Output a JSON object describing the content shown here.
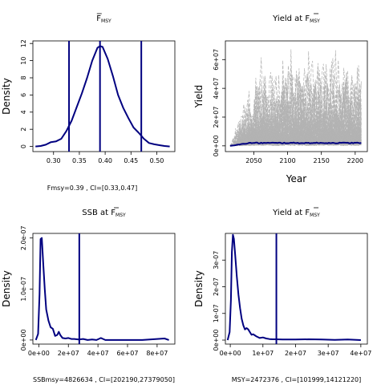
{
  "chart_data": [
    {
      "type": "line",
      "title_main": "F",
      "title_sub": "MSY",
      "title_bar": true,
      "xlabel": "",
      "ylabel": "Density",
      "xlim": [
        0.26,
        0.535
      ],
      "ylim": [
        -0.6,
        12.3
      ],
      "x_ticks": [
        0.3,
        0.35,
        0.4,
        0.45,
        0.5
      ],
      "x_tick_labels": [
        "0.30",
        "0.35",
        "0.40",
        "0.45",
        "0.50"
      ],
      "y_ticks": [
        0,
        2,
        4,
        6,
        8,
        10,
        12
      ],
      "y_tick_labels": [
        "0",
        "2",
        "4",
        "6",
        "8",
        "10",
        "12"
      ],
      "series": [
        {
          "color": "#000080",
          "x": [
            0.265,
            0.275,
            0.285,
            0.295,
            0.305,
            0.315,
            0.325,
            0.335,
            0.345,
            0.355,
            0.365,
            0.375,
            0.385,
            0.39,
            0.395,
            0.405,
            0.415,
            0.425,
            0.435,
            0.445,
            0.455,
            0.465,
            0.475,
            0.485,
            0.495,
            0.505,
            0.515,
            0.525
          ],
          "y": [
            0.0,
            0.05,
            0.2,
            0.5,
            0.6,
            0.9,
            1.8,
            3.0,
            4.6,
            6.2,
            8.0,
            10.0,
            11.5,
            11.7,
            11.6,
            10.2,
            8.2,
            6.0,
            4.5,
            3.3,
            2.2,
            1.6,
            0.9,
            0.4,
            0.25,
            0.15,
            0.05,
            0.0
          ]
        }
      ],
      "vlines": [
        0.33,
        0.39,
        0.47
      ],
      "caption": "Fmsy=0.39 , CI=[0.33,0.47]"
    },
    {
      "type": "line",
      "title_main": "Yield at ",
      "title_f": "F",
      "title_sub": "MSY",
      "title_bar": true,
      "xlabel": "Year",
      "ylabel": "Yield",
      "xlim": [
        2008,
        2218
      ],
      "ylim": [
        -4000000,
        73000000
      ],
      "x_ticks": [
        2050,
        2100,
        2150,
        2200
      ],
      "x_tick_labels": [
        "2050",
        "2100",
        "2150",
        "2200"
      ],
      "y_ticks": [
        0,
        20000000,
        40000000,
        60000000
      ],
      "y_tick_labels": [
        "0e+00",
        "2e+07",
        "4e+07",
        "6e+07"
      ],
      "year_range": [
        2015,
        2210
      ],
      "simulations": 120,
      "sim_color": "#b3b3b3",
      "median_color": "#000080",
      "median_level": 2000000
    },
    {
      "type": "line",
      "title_main": "SSB at ",
      "title_f": "F",
      "title_sub": "MSY",
      "title_bar": true,
      "xlabel": "",
      "ylabel": "Density",
      "xlim": [
        -4000000,
        92000000
      ],
      "ylim": [
        -8e-09,
        2.09e-07
      ],
      "x_ticks": [
        0,
        20000000,
        40000000,
        60000000,
        80000000
      ],
      "x_tick_labels": [
        "0e+00",
        "2e+07",
        "4e+07",
        "6e+07",
        "8e+07"
      ],
      "y_ticks": [
        0,
        1e-07,
        2e-07
      ],
      "y_tick_labels": [
        "0e+00",
        "1.0e-07",
        "2.0e-07"
      ],
      "series": [
        {
          "color": "#000080",
          "x": [
            -2000000,
            -500000,
            500000,
            1200000,
            2000000,
            3000000,
            4000000,
            5000000,
            6500000,
            8000000,
            9500000,
            11000000,
            12500000,
            13500000,
            14500000,
            16000000,
            18000000,
            20000000,
            22000000,
            24000000,
            27000000,
            30000000,
            33000000,
            36000000,
            39000000,
            42000000,
            45000000,
            50000000,
            60000000,
            70000000,
            80000000,
            85000000,
            88000000
          ],
          "y": [
            0.0,
            1.2e-08,
            9e-08,
            1.98e-07,
            2e-07,
            1.5e-07,
            1e-07,
            6e-08,
            3.8e-08,
            2.5e-08,
            2.2e-08,
            8e-09,
            1e-08,
            1.6e-08,
            1e-08,
            4e-09,
            3e-09,
            4e-09,
            2e-09,
            2e-09,
            1e-09,
            2e-09,
            0.0,
            1e-09,
            0.0,
            4e-09,
            0.0,
            0.0,
            0.0,
            0.0,
            2e-09,
            3e-09,
            0.0
          ]
        }
      ],
      "vlines": [
        27379050
      ],
      "caption": "SSBmsy=4826634 , CI=[202190,27379050]"
    },
    {
      "type": "line",
      "title_main": "Yield at ",
      "title_f": "F",
      "title_sub": "MSY",
      "title_bar": true,
      "xlabel": "",
      "ylabel": "Density",
      "xlim": [
        -1500000,
        42000000
      ],
      "ylim": [
        -1.5e-08,
        4e-07
      ],
      "x_ticks": [
        0,
        10000000,
        20000000,
        30000000,
        40000000
      ],
      "x_tick_labels": [
        "0e+00",
        "1e+07",
        "2e+07",
        "3e+07",
        "4e+07"
      ],
      "y_ticks": [
        0,
        1e-07,
        2e-07,
        3e-07
      ],
      "y_tick_labels": [
        "0e+00",
        "1e-07",
        "2e-07",
        "3e-07"
      ],
      "series": [
        {
          "color": "#000080",
          "x": [
            -800000,
            -200000,
            200000,
            500000,
            800000,
            1100000,
            1500000,
            2000000,
            2500000,
            3000000,
            3500000,
            4000000,
            4500000,
            5000000,
            5500000,
            6000000,
            6500000,
            7000000,
            7500000,
            8000000,
            9000000,
            10000000,
            11000000,
            12000000,
            13000000,
            14000000,
            16000000,
            20000000,
            24000000,
            28000000,
            32000000,
            36000000,
            40000000
          ],
          "y": [
            0.0,
            3e-08,
            1.5e-07,
            3.3e-07,
            3.95e-07,
            3.8e-07,
            3.2e-07,
            2.4e-07,
            1.7e-07,
            1.2e-07,
            8e-08,
            5.5e-08,
            4e-08,
            4.5e-08,
            4e-08,
            3e-08,
            2e-08,
            2.2e-08,
            1.8e-08,
            1.4e-08,
            8e-09,
            1e-08,
            6e-09,
            4e-09,
            3e-09,
            3e-09,
            2e-09,
            2e-09,
            3e-09,
            2e-09,
            1e-09,
            2e-09,
            0.0
          ]
        }
      ],
      "vlines": [
        14121220
      ],
      "caption": "MSY=2472376 , CI=[101999,14121220]"
    }
  ]
}
